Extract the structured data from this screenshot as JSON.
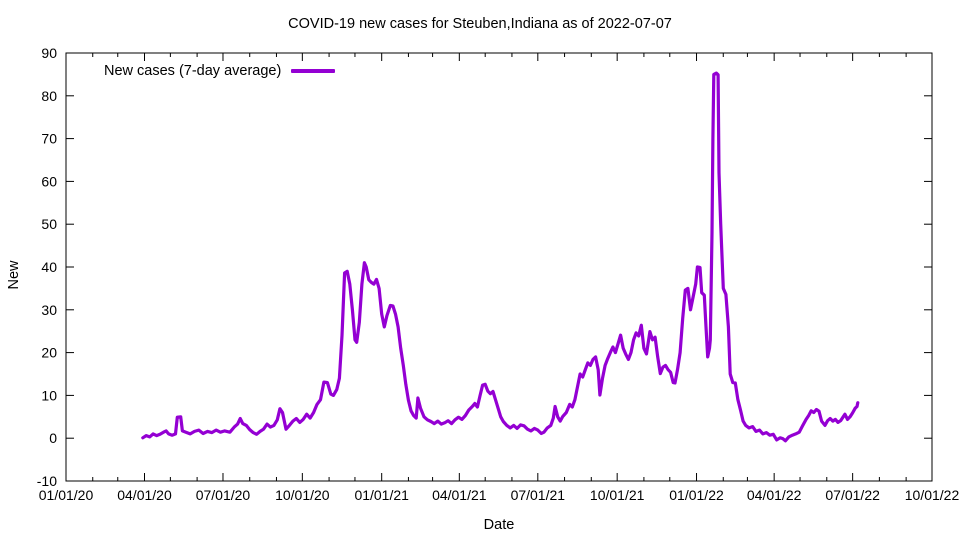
{
  "title": "COVID-19 new cases for Steuben,Indiana as of 2022-07-07",
  "legend": {
    "label": "New cases (7-day average)"
  },
  "axes": {
    "x_label": "Date",
    "y_label": "New"
  },
  "colors": {
    "line": "#9400d3",
    "frame": "#000000",
    "background": "#ffffff"
  },
  "chart_data": {
    "type": "line",
    "title": "COVID-19 new cases for Steuben,Indiana as of 2022-07-07",
    "xlabel": "Date",
    "ylabel": "New",
    "legend_position": "top-left-inside",
    "grid": false,
    "x_range": [
      "2020-01-01",
      "2022-10-01"
    ],
    "ylim": [
      -10,
      90
    ],
    "y_ticks": [
      -10,
      0,
      10,
      20,
      30,
      40,
      50,
      60,
      70,
      80,
      90
    ],
    "x_ticks": [
      {
        "date": "2020-01-01",
        "label": "01/01/20"
      },
      {
        "date": "2020-04-01",
        "label": "04/01/20"
      },
      {
        "date": "2020-07-01",
        "label": "07/01/20"
      },
      {
        "date": "2020-10-01",
        "label": "10/01/20"
      },
      {
        "date": "2021-01-01",
        "label": "01/01/21"
      },
      {
        "date": "2021-04-01",
        "label": "04/01/21"
      },
      {
        "date": "2021-07-01",
        "label": "07/01/21"
      },
      {
        "date": "2021-10-01",
        "label": "10/01/21"
      },
      {
        "date": "2022-01-01",
        "label": "01/01/22"
      },
      {
        "date": "2022-04-01",
        "label": "04/01/22"
      },
      {
        "date": "2022-07-01",
        "label": "07/01/22"
      },
      {
        "date": "2022-10-01",
        "label": "10/01/22"
      }
    ],
    "minor_tick_unit": "month",
    "series": [
      {
        "name": "New cases (7-day average)",
        "color": "#9400d3",
        "points": [
          [
            "2020-03-30",
            0.1
          ],
          [
            "2020-04-03",
            0.6
          ],
          [
            "2020-04-07",
            0.3
          ],
          [
            "2020-04-11",
            1.0
          ],
          [
            "2020-04-15",
            0.6
          ],
          [
            "2020-04-19",
            0.9
          ],
          [
            "2020-04-23",
            1.4
          ],
          [
            "2020-04-26",
            1.7
          ],
          [
            "2020-04-29",
            1.0
          ],
          [
            "2020-05-03",
            0.7
          ],
          [
            "2020-05-07",
            1.0
          ],
          [
            "2020-05-09",
            4.9
          ],
          [
            "2020-05-13",
            5.0
          ],
          [
            "2020-05-15",
            1.7
          ],
          [
            "2020-05-19",
            1.4
          ],
          [
            "2020-05-24",
            1.0
          ],
          [
            "2020-05-29",
            1.6
          ],
          [
            "2020-06-03",
            1.9
          ],
          [
            "2020-06-08",
            1.1
          ],
          [
            "2020-06-13",
            1.6
          ],
          [
            "2020-06-18",
            1.3
          ],
          [
            "2020-06-23",
            1.9
          ],
          [
            "2020-06-28",
            1.4
          ],
          [
            "2020-07-03",
            1.7
          ],
          [
            "2020-07-09",
            1.4
          ],
          [
            "2020-07-14",
            2.6
          ],
          [
            "2020-07-18",
            3.3
          ],
          [
            "2020-07-21",
            4.6
          ],
          [
            "2020-07-24",
            3.4
          ],
          [
            "2020-07-28",
            3.0
          ],
          [
            "2020-08-01",
            2.0
          ],
          [
            "2020-08-05",
            1.3
          ],
          [
            "2020-08-09",
            0.9
          ],
          [
            "2020-08-13",
            1.6
          ],
          [
            "2020-08-17",
            2.1
          ],
          [
            "2020-08-21",
            3.3
          ],
          [
            "2020-08-25",
            2.6
          ],
          [
            "2020-08-29",
            3.0
          ],
          [
            "2020-09-02",
            4.3
          ],
          [
            "2020-09-05",
            6.9
          ],
          [
            "2020-09-08",
            6.0
          ],
          [
            "2020-09-12",
            2.1
          ],
          [
            "2020-09-16",
            3.0
          ],
          [
            "2020-09-20",
            4.0
          ],
          [
            "2020-09-24",
            4.6
          ],
          [
            "2020-09-28",
            3.7
          ],
          [
            "2020-10-02",
            4.4
          ],
          [
            "2020-10-06",
            5.6
          ],
          [
            "2020-10-10",
            4.7
          ],
          [
            "2020-10-14",
            6.0
          ],
          [
            "2020-10-18",
            7.9
          ],
          [
            "2020-10-22",
            9.0
          ],
          [
            "2020-10-26",
            13.1
          ],
          [
            "2020-10-30",
            13.0
          ],
          [
            "2020-11-03",
            10.3
          ],
          [
            "2020-11-06",
            10.0
          ],
          [
            "2020-11-10",
            11.4
          ],
          [
            "2020-11-13",
            14.0
          ],
          [
            "2020-11-16",
            24.0
          ],
          [
            "2020-11-19",
            38.6
          ],
          [
            "2020-11-22",
            39.0
          ],
          [
            "2020-11-25",
            36.0
          ],
          [
            "2020-11-28",
            30.0
          ],
          [
            "2020-12-01",
            23.0
          ],
          [
            "2020-12-03",
            22.4
          ],
          [
            "2020-12-06",
            27.0
          ],
          [
            "2020-12-09",
            36.0
          ],
          [
            "2020-12-12",
            41.0
          ],
          [
            "2020-12-14",
            40.0
          ],
          [
            "2020-12-17",
            37.0
          ],
          [
            "2020-12-20",
            36.4
          ],
          [
            "2020-12-23",
            36.0
          ],
          [
            "2020-12-26",
            37.1
          ],
          [
            "2020-12-29",
            35.0
          ],
          [
            "2021-01-01",
            29.0
          ],
          [
            "2021-01-04",
            26.0
          ],
          [
            "2021-01-07",
            28.6
          ],
          [
            "2021-01-11",
            31.0
          ],
          [
            "2021-01-14",
            30.9
          ],
          [
            "2021-01-17",
            29.0
          ],
          [
            "2021-01-20",
            26.0
          ],
          [
            "2021-01-23",
            21.0
          ],
          [
            "2021-01-26",
            17.0
          ],
          [
            "2021-01-29",
            12.6
          ],
          [
            "2021-02-01",
            8.9
          ],
          [
            "2021-02-04",
            6.4
          ],
          [
            "2021-02-07",
            5.3
          ],
          [
            "2021-02-10",
            4.7
          ],
          [
            "2021-02-12",
            9.4
          ],
          [
            "2021-02-15",
            7.0
          ],
          [
            "2021-02-19",
            5.0
          ],
          [
            "2021-02-23",
            4.3
          ],
          [
            "2021-02-27",
            3.9
          ],
          [
            "2021-03-03",
            3.4
          ],
          [
            "2021-03-07",
            4.0
          ],
          [
            "2021-03-11",
            3.3
          ],
          [
            "2021-03-15",
            3.6
          ],
          [
            "2021-03-19",
            4.1
          ],
          [
            "2021-03-23",
            3.4
          ],
          [
            "2021-03-27",
            4.3
          ],
          [
            "2021-03-31",
            4.9
          ],
          [
            "2021-04-04",
            4.4
          ],
          [
            "2021-04-08",
            5.3
          ],
          [
            "2021-04-12",
            6.6
          ],
          [
            "2021-04-16",
            7.4
          ],
          [
            "2021-04-19",
            8.1
          ],
          [
            "2021-04-22",
            7.3
          ],
          [
            "2021-04-25",
            9.9
          ],
          [
            "2021-04-28",
            12.4
          ],
          [
            "2021-05-01",
            12.6
          ],
          [
            "2021-05-04",
            11.0
          ],
          [
            "2021-05-07",
            10.4
          ],
          [
            "2021-05-10",
            10.9
          ],
          [
            "2021-05-13",
            9.0
          ],
          [
            "2021-05-16",
            7.0
          ],
          [
            "2021-05-19",
            5.0
          ],
          [
            "2021-05-22",
            3.9
          ],
          [
            "2021-05-26",
            3.0
          ],
          [
            "2021-05-30",
            2.4
          ],
          [
            "2021-06-03",
            3.0
          ],
          [
            "2021-06-07",
            2.3
          ],
          [
            "2021-06-11",
            3.1
          ],
          [
            "2021-06-15",
            2.9
          ],
          [
            "2021-06-19",
            2.1
          ],
          [
            "2021-06-23",
            1.7
          ],
          [
            "2021-06-27",
            2.3
          ],
          [
            "2021-07-01",
            1.9
          ],
          [
            "2021-07-05",
            1.1
          ],
          [
            "2021-07-08",
            1.4
          ],
          [
            "2021-07-12",
            2.4
          ],
          [
            "2021-07-16",
            3.0
          ],
          [
            "2021-07-19",
            4.7
          ],
          [
            "2021-07-21",
            7.4
          ],
          [
            "2021-07-24",
            5.0
          ],
          [
            "2021-07-27",
            4.0
          ],
          [
            "2021-07-30",
            5.1
          ],
          [
            "2021-08-03",
            6.0
          ],
          [
            "2021-08-07",
            7.9
          ],
          [
            "2021-08-10",
            7.3
          ],
          [
            "2021-08-13",
            9.0
          ],
          [
            "2021-08-16",
            12.0
          ],
          [
            "2021-08-19",
            15.0
          ],
          [
            "2021-08-22",
            14.3
          ],
          [
            "2021-08-25",
            16.0
          ],
          [
            "2021-08-28",
            17.6
          ],
          [
            "2021-08-31",
            17.0
          ],
          [
            "2021-09-03",
            18.4
          ],
          [
            "2021-09-06",
            19.0
          ],
          [
            "2021-09-09",
            16.0
          ],
          [
            "2021-09-11",
            10.1
          ],
          [
            "2021-09-14",
            14.0
          ],
          [
            "2021-09-17",
            17.0
          ],
          [
            "2021-09-20",
            18.6
          ],
          [
            "2021-09-23",
            20.0
          ],
          [
            "2021-09-26",
            21.3
          ],
          [
            "2021-09-29",
            20.0
          ],
          [
            "2021-10-02",
            22.0
          ],
          [
            "2021-10-05",
            24.1
          ],
          [
            "2021-10-08",
            21.0
          ],
          [
            "2021-10-11",
            19.6
          ],
          [
            "2021-10-14",
            18.4
          ],
          [
            "2021-10-17",
            20.0
          ],
          [
            "2021-10-20",
            23.0
          ],
          [
            "2021-10-23",
            24.6
          ],
          [
            "2021-10-26",
            23.9
          ],
          [
            "2021-10-29",
            26.4
          ],
          [
            "2021-11-01",
            21.0
          ],
          [
            "2021-11-04",
            19.7
          ],
          [
            "2021-11-08",
            24.9
          ],
          [
            "2021-11-11",
            23.0
          ],
          [
            "2021-11-14",
            23.6
          ],
          [
            "2021-11-17",
            19.0
          ],
          [
            "2021-11-20",
            15.1
          ],
          [
            "2021-11-23",
            16.6
          ],
          [
            "2021-11-26",
            17.0
          ],
          [
            "2021-11-29",
            16.0
          ],
          [
            "2021-12-02",
            15.4
          ],
          [
            "2021-12-05",
            13.0
          ],
          [
            "2021-12-07",
            12.9
          ],
          [
            "2021-12-10",
            16.0
          ],
          [
            "2021-12-13",
            20.0
          ],
          [
            "2021-12-16",
            28.0
          ],
          [
            "2021-12-19",
            34.6
          ],
          [
            "2021-12-22",
            35.0
          ],
          [
            "2021-12-25",
            30.0
          ],
          [
            "2021-12-28",
            33.0
          ],
          [
            "2021-12-31",
            36.0
          ],
          [
            "2022-01-02",
            40.0
          ],
          [
            "2022-01-05",
            39.9
          ],
          [
            "2022-01-07",
            34.0
          ],
          [
            "2022-01-10",
            33.4
          ],
          [
            "2022-01-12",
            26.0
          ],
          [
            "2022-01-14",
            19.0
          ],
          [
            "2022-01-16",
            21.0
          ],
          [
            "2022-01-17",
            23.0
          ],
          [
            "2022-01-19",
            47.9
          ],
          [
            "2022-01-20",
            70.0
          ],
          [
            "2022-01-21",
            85.0
          ],
          [
            "2022-01-24",
            85.3
          ],
          [
            "2022-01-26",
            84.9
          ],
          [
            "2022-01-27",
            62.0
          ],
          [
            "2022-01-29",
            50.0
          ],
          [
            "2022-02-01",
            35.0
          ],
          [
            "2022-02-04",
            33.6
          ],
          [
            "2022-02-07",
            26.0
          ],
          [
            "2022-02-09",
            15.0
          ],
          [
            "2022-02-12",
            13.0
          ],
          [
            "2022-02-15",
            12.9
          ],
          [
            "2022-02-18",
            9.0
          ],
          [
            "2022-02-21",
            6.6
          ],
          [
            "2022-02-24",
            4.0
          ],
          [
            "2022-02-27",
            3.0
          ],
          [
            "2022-03-03",
            2.4
          ],
          [
            "2022-03-07",
            2.7
          ],
          [
            "2022-03-11",
            1.6
          ],
          [
            "2022-03-15",
            1.9
          ],
          [
            "2022-03-19",
            1.0
          ],
          [
            "2022-03-23",
            1.3
          ],
          [
            "2022-03-27",
            0.7
          ],
          [
            "2022-03-31",
            0.9
          ],
          [
            "2022-04-04",
            -0.4
          ],
          [
            "2022-04-08",
            0.1
          ],
          [
            "2022-04-11",
            -0.1
          ],
          [
            "2022-04-14",
            -0.6
          ],
          [
            "2022-04-18",
            0.3
          ],
          [
            "2022-04-22",
            0.7
          ],
          [
            "2022-04-26",
            1.0
          ],
          [
            "2022-04-30",
            1.4
          ],
          [
            "2022-05-04",
            2.9
          ],
          [
            "2022-05-08",
            4.4
          ],
          [
            "2022-05-11",
            5.3
          ],
          [
            "2022-05-14",
            6.4
          ],
          [
            "2022-05-17",
            6.0
          ],
          [
            "2022-05-20",
            6.7
          ],
          [
            "2022-05-23",
            6.3
          ],
          [
            "2022-05-26",
            4.0
          ],
          [
            "2022-05-30",
            3.0
          ],
          [
            "2022-06-02",
            4.1
          ],
          [
            "2022-06-05",
            4.6
          ],
          [
            "2022-06-08",
            4.0
          ],
          [
            "2022-06-11",
            4.4
          ],
          [
            "2022-06-14",
            3.7
          ],
          [
            "2022-06-17",
            4.1
          ],
          [
            "2022-06-20",
            5.0
          ],
          [
            "2022-06-22",
            5.6
          ],
          [
            "2022-06-25",
            4.4
          ],
          [
            "2022-06-28",
            5.0
          ],
          [
            "2022-07-01",
            5.9
          ],
          [
            "2022-07-04",
            7.0
          ],
          [
            "2022-07-06",
            7.4
          ],
          [
            "2022-07-07",
            8.3
          ]
        ]
      }
    ]
  }
}
